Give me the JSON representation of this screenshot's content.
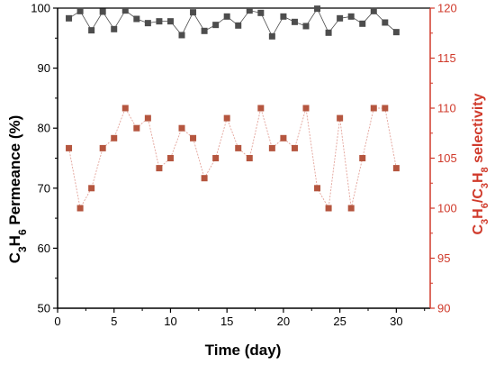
{
  "chart_data": {
    "type": "line",
    "xlabel": "Time (day)",
    "ylabel_left": {
      "main": "C",
      "sub1": "3",
      "rest": "H",
      "sub2": "6",
      "tail": " Permeance (%)"
    },
    "ylabel_right": {
      "p1": "C",
      "s1": "3",
      "p2": "H",
      "s2": "6",
      "p3": "/C",
      "s3": "3",
      "p4": "H",
      "s4": "8",
      "p5": " selectivity"
    },
    "xlim": [
      0,
      33
    ],
    "ylim_left": [
      50,
      100
    ],
    "ylim_right": [
      90,
      120
    ],
    "x_ticks": [
      "0",
      "5",
      "10",
      "15",
      "20",
      "25",
      "30"
    ],
    "y_ticks_left": [
      "50",
      "60",
      "70",
      "80",
      "90",
      "100"
    ],
    "y_ticks_right": [
      "90",
      "95",
      "100",
      "105",
      "110",
      "115",
      "120"
    ],
    "x": [
      1,
      2,
      3,
      4,
      5,
      6,
      7,
      8,
      9,
      10,
      11,
      12,
      13,
      14,
      15,
      16,
      17,
      18,
      19,
      20,
      21,
      22,
      23,
      24,
      25,
      26,
      27,
      28,
      29,
      30
    ],
    "series": [
      {
        "axis": "left",
        "color": "#4d4d4d",
        "values": [
          98.3,
          99.5,
          96.3,
          99.4,
          96.5,
          99.6,
          98.2,
          97.5,
          97.8,
          97.8,
          95.5,
          99.3,
          96.2,
          97.2,
          98.6,
          97.1,
          99.6,
          99.2,
          95.3,
          98.6,
          97.7,
          97,
          99.9,
          95.9,
          98.3,
          98.6,
          97.4,
          99.5,
          97.6,
          96
        ]
      },
      {
        "axis": "right",
        "color": "#b5563f",
        "line_color": "#e3a39a",
        "values": [
          106,
          100,
          102,
          106,
          107,
          110,
          108,
          109,
          104,
          105,
          108,
          107,
          103,
          105,
          109,
          106,
          105,
          110,
          106,
          107,
          106,
          110,
          102,
          100,
          109,
          100,
          105,
          110,
          110,
          104
        ]
      }
    ]
  },
  "colors": {
    "left_axis": "#000000",
    "right_axis": "#d03a2b"
  }
}
